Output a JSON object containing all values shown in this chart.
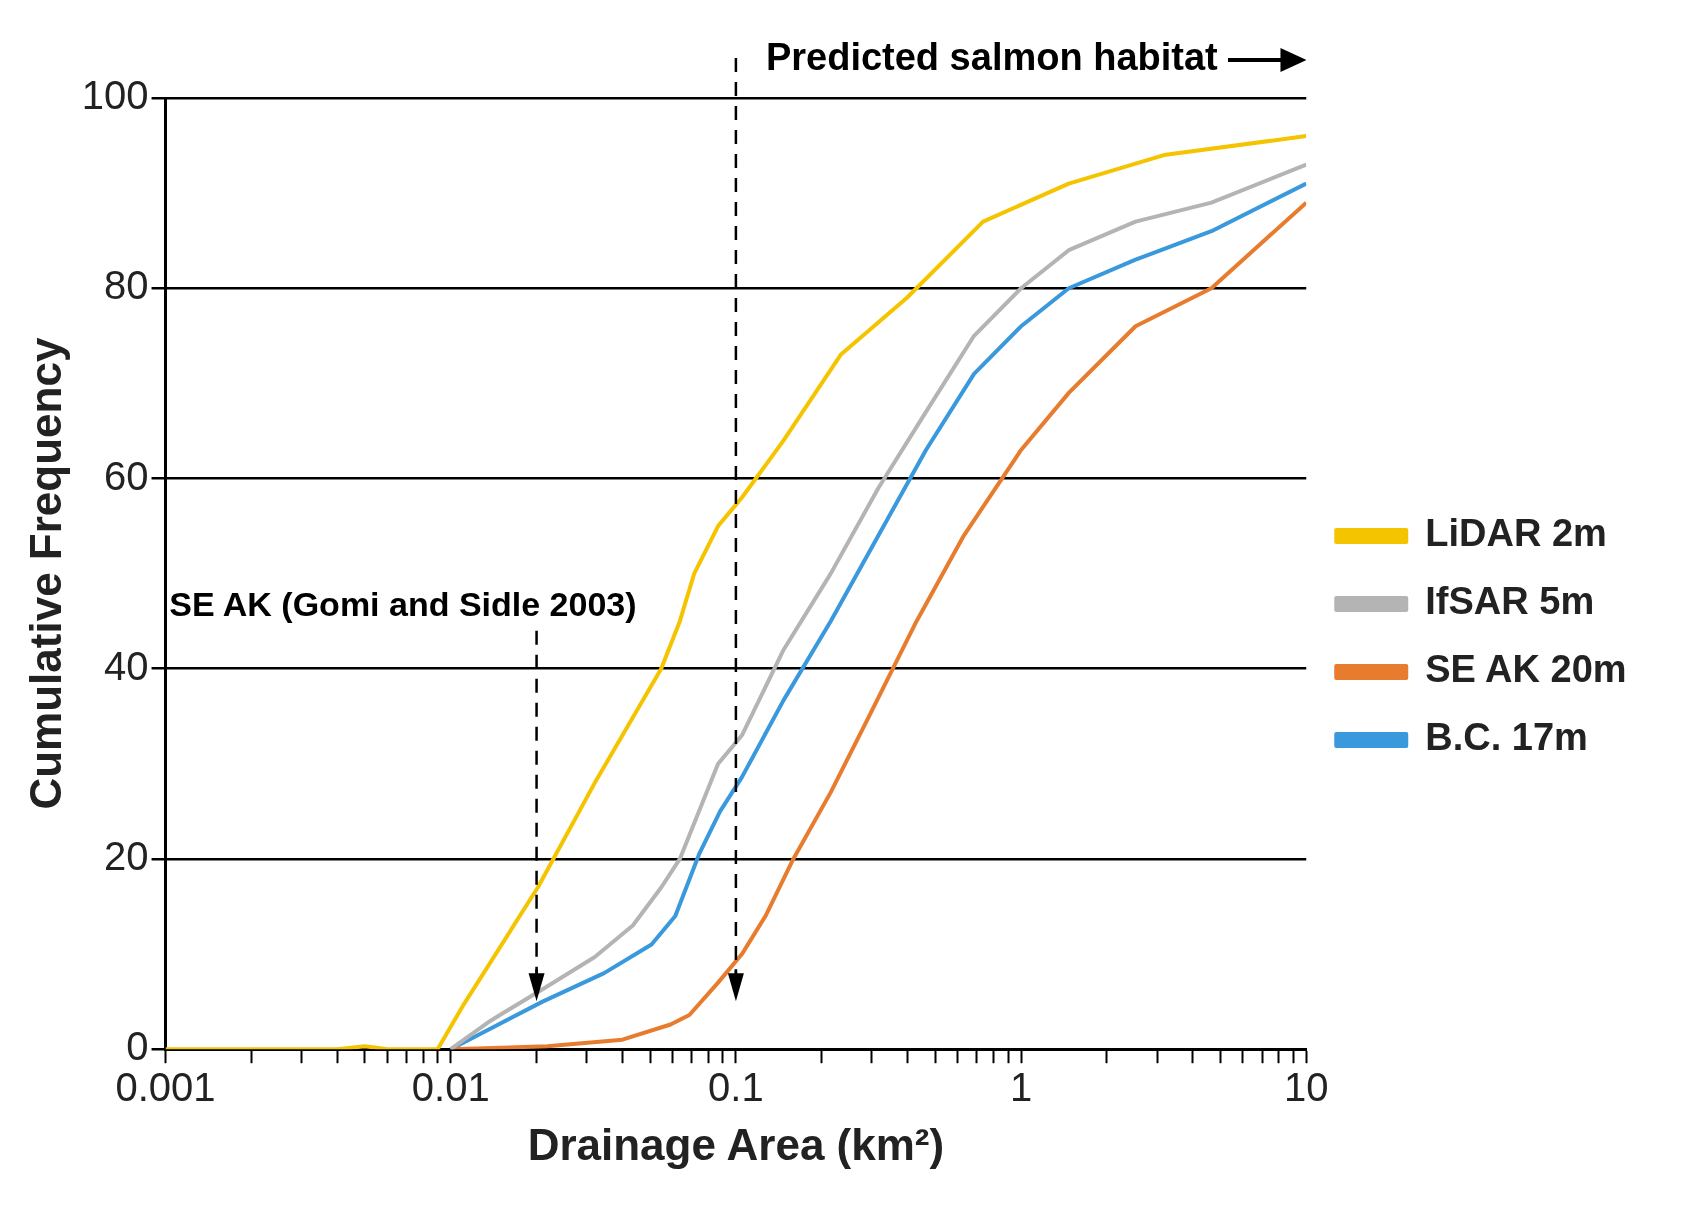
{
  "chart_data": {
    "type": "line",
    "xlabel": "Drainage Area (km²)",
    "ylabel": "Cumulative Frequency",
    "log": "x",
    "grid": "y",
    "legend": "right",
    "marker": "none",
    "line_style": "solid",
    "xlim": [
      0.001,
      10
    ],
    "ylim": [
      0,
      100
    ],
    "xticks": [
      0.001,
      {
        "value": 0.002,
        "label": null
      },
      {
        "value": 0.003,
        "label": null
      },
      {
        "value": 0.004,
        "label": null
      },
      {
        "value": 0.005,
        "label": null
      },
      {
        "value": 0.006,
        "label": null
      },
      {
        "value": 0.007,
        "label": null
      },
      {
        "value": 0.008,
        "label": null
      },
      {
        "value": 0.009,
        "label": null
      },
      0.01,
      {
        "value": 0.02,
        "label": null
      },
      {
        "value": 0.03,
        "label": null
      },
      {
        "value": 0.04,
        "label": null
      },
      {
        "value": 0.05,
        "label": null
      },
      {
        "value": 0.06,
        "label": null
      },
      {
        "value": 0.07,
        "label": null
      },
      {
        "value": 0.08,
        "label": null
      },
      {
        "value": 0.09,
        "label": null
      },
      0.1,
      {
        "value": 0.2,
        "label": null
      },
      {
        "value": 0.3,
        "label": null
      },
      {
        "value": 0.4,
        "label": null
      },
      {
        "value": 0.5,
        "label": null
      },
      {
        "value": 0.6,
        "label": null
      },
      {
        "value": 0.7,
        "label": null
      },
      {
        "value": 0.8,
        "label": null
      },
      {
        "value": 0.9,
        "label": null
      },
      1,
      {
        "value": 2,
        "label": null
      },
      {
        "value": 3,
        "label": null
      },
      {
        "value": 4,
        "label": null
      },
      {
        "value": 5,
        "label": null
      },
      {
        "value": 6,
        "label": null
      },
      {
        "value": 7,
        "label": null
      },
      {
        "value": 8,
        "label": null
      },
      {
        "value": 9,
        "label": null
      },
      10
    ],
    "yticks": [
      0,
      20,
      40,
      60,
      80,
      100
    ],
    "ref_lines": [
      {
        "axis": "x",
        "value": 0.02,
        "label": "SE AK (Gomi and Sidle 2003)",
        "line_style": "dashed",
        "color": "#000000"
      },
      {
        "axis": "x",
        "value": 0.1,
        "label": "Predicted salmon habitat",
        "line_style": "dashed",
        "color": "#000000"
      }
    ],
    "series": [
      {
        "name": "LiDAR 2m",
        "color": "#f5c400",
        "x": [
          0.001,
          0.004,
          0.005,
          0.006,
          0.008,
          0.009,
          0.011,
          0.0202,
          0.032,
          0.0547,
          0.0636,
          0.0714,
          0.0866,
          0.105,
          0.147,
          0.233,
          0.398,
          0.736,
          1.47,
          3.17,
          10
        ],
        "values": [
          0,
          0,
          0.3,
          0,
          0,
          0,
          4.5,
          17,
          28,
          40,
          45,
          50,
          55,
          58,
          64,
          73,
          79,
          87,
          91,
          94,
          96
        ]
      },
      {
        "name": "IfSAR 5m",
        "color": "#b4b4b4",
        "x": [
          0.01,
          0.0138,
          0.021,
          0.032,
          0.0435,
          0.0547,
          0.0636,
          0.0866,
          0.105,
          0.147,
          0.215,
          0.316,
          0.464,
          0.684,
          1.0,
          1.47,
          2.52,
          4.65,
          10
        ],
        "values": [
          0,
          3,
          6.3,
          9.7,
          13,
          17,
          20,
          30,
          33,
          42,
          50,
          59,
          67,
          75,
          80,
          84,
          87,
          89,
          93
        ]
      },
      {
        "name": "SE AK 20m",
        "color": "#e87c2e",
        "x": [
          0.01,
          0.0218,
          0.04,
          0.059,
          0.0687,
          0.0866,
          0.105,
          0.127,
          0.159,
          0.215,
          0.293,
          0.43,
          0.63,
          1.0,
          1.47,
          2.52,
          4.65,
          10
        ],
        "values": [
          0,
          0.3,
          1,
          2.6,
          3.6,
          7,
          10,
          14,
          20,
          27,
          35,
          45,
          54,
          63,
          69,
          76,
          80,
          89
        ]
      },
      {
        "name": "B.C. 17m",
        "color": "#3a98dc",
        "x": [
          0.01,
          0.021,
          0.0345,
          0.0506,
          0.0613,
          0.0743,
          0.088,
          0.105,
          0.147,
          0.215,
          0.316,
          0.464,
          0.684,
          1.0,
          1.47,
          2.52,
          4.65,
          10
        ],
        "values": [
          0,
          5,
          8,
          11,
          14,
          20.5,
          25,
          28.6,
          36.7,
          45,
          54,
          63,
          71,
          76,
          80,
          83,
          86,
          91
        ]
      }
    ]
  }
}
